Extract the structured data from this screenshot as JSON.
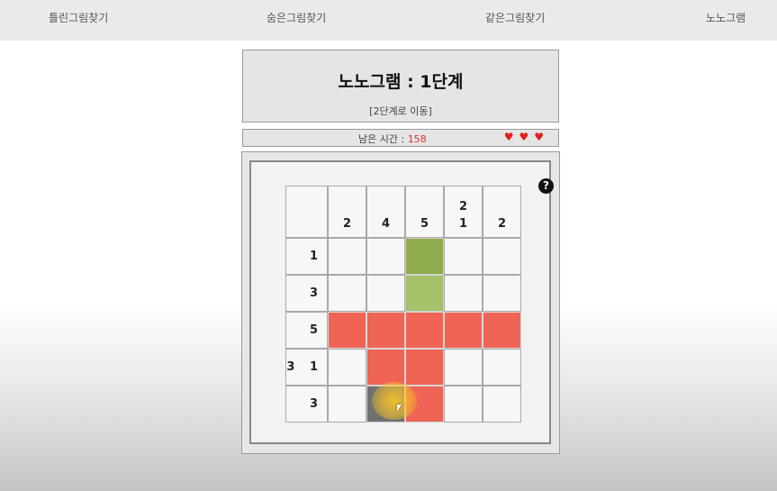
{
  "nav": {
    "items": [
      "틀린그림찾기",
      "숨은그림찾기",
      "같은그림찾기",
      "노노그램"
    ]
  },
  "header": {
    "title": "노노그램 : 1단계",
    "next_link": "[2단계로 이동]"
  },
  "status": {
    "time_label": "남은 시간 : ",
    "time_value": "158",
    "lives": 3,
    "hearts": "♥♥♥"
  },
  "help": {
    "icon": "question-icon",
    "glyph": "?"
  },
  "puzzle": {
    "size": 5,
    "col_clues": [
      [
        "2"
      ],
      [
        "4"
      ],
      [
        "5"
      ],
      [
        "2",
        "1"
      ],
      [
        "2"
      ]
    ],
    "row_clues": [
      "1",
      "3",
      "5",
      "3 1",
      "3"
    ],
    "cells": [
      [
        "empty",
        "empty",
        "green-dark",
        "empty",
        "empty"
      ],
      [
        "empty",
        "empty",
        "green-light",
        "empty",
        "empty"
      ],
      [
        "red",
        "red",
        "red",
        "red",
        "red"
      ],
      [
        "empty",
        "red",
        "red",
        "empty",
        "empty"
      ],
      [
        "empty",
        "gray",
        "red",
        "empty",
        "empty"
      ]
    ]
  },
  "colors": {
    "filled": "#f06456",
    "hint_green_dark": "#8fab4c",
    "hint_green_light": "#a4c26a",
    "cursor_highlight": "#f8c428",
    "timer_value": "#e03030",
    "heart": "#e02020"
  }
}
